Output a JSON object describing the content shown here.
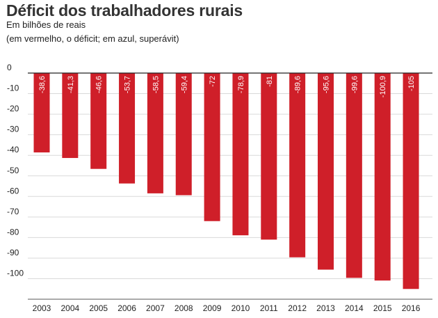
{
  "title": "Déficit dos trabalhadores rurais",
  "subtitle": "Em bilhões de reais",
  "note": "(em vermelho, o déficit; em azul, superávit)",
  "chart_data": {
    "type": "bar",
    "categories": [
      "2003",
      "2004",
      "2005",
      "2006",
      "2007",
      "2008",
      "2009",
      "2010",
      "2011",
      "2012",
      "2013",
      "2014",
      "2015",
      "2016"
    ],
    "values": [
      -38.6,
      -41.3,
      -46.6,
      -53.7,
      -58.5,
      -59.4,
      -72,
      -78.9,
      -81,
      -89.6,
      -95.6,
      -99.6,
      -100.9,
      -105
    ],
    "data_labels": [
      "-38,6",
      "-41,3",
      "-46,6",
      "-53,7",
      "-58,5",
      "-59,4",
      "-72",
      "-78,9",
      "-81",
      "-89,6",
      "-95,6",
      "-99,6",
      "-100,9",
      "-105"
    ],
    "yticks": [
      "0",
      "-10",
      "-20",
      "-30",
      "-40",
      "-50",
      "-60",
      "-70",
      "-80",
      "-90",
      "-100"
    ],
    "ylim": [
      -110,
      0
    ],
    "xlabel": "",
    "ylabel": "",
    "grid": true,
    "colors": {
      "deficit": "#cf1f29",
      "surplus": "#1f5fcf",
      "grid": "#d9d9d9",
      "axis": "#222222"
    }
  }
}
